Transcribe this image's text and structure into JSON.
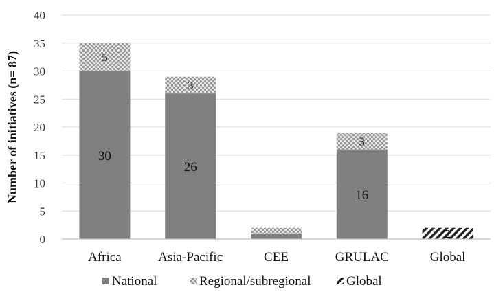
{
  "chart_data": {
    "type": "bar",
    "stacked": true,
    "categories": [
      "Africa",
      "Asia-Pacific",
      "CEE",
      "GRULAC",
      "Global"
    ],
    "series": [
      {
        "name": "National",
        "values": [
          30,
          26,
          1,
          16,
          0
        ],
        "color": "#808080",
        "pattern": "solid"
      },
      {
        "name": "Regional/subregional",
        "values": [
          5,
          3,
          1,
          3,
          0
        ],
        "color": "#a0a0a0",
        "pattern": "checker"
      },
      {
        "name": "Global",
        "values": [
          0,
          0,
          0,
          0,
          2
        ],
        "color": "#222222",
        "pattern": "diagonal"
      }
    ],
    "data_labels": [
      {
        "category": "Africa",
        "series": "National",
        "text": "30"
      },
      {
        "category": "Africa",
        "series": "Regional/subregional",
        "text": "5"
      },
      {
        "category": "Asia-Pacific",
        "series": "National",
        "text": "26"
      },
      {
        "category": "Asia-Pacific",
        "series": "Regional/subregional",
        "text": "3"
      },
      {
        "category": "GRULAC",
        "series": "National",
        "text": "16"
      },
      {
        "category": "GRULAC",
        "series": "Regional/subregional",
        "text": "3"
      },
      {
        "category": "Global",
        "series": "Global",
        "text": "2"
      }
    ],
    "yticks": [
      "0",
      "5",
      "10",
      "15",
      "20",
      "25",
      "30",
      "35",
      "40"
    ],
    "ylim": [
      0,
      40
    ],
    "ylabel": "Number of initiatives  (n= 87)",
    "xlabel": "",
    "title": "",
    "grid": true,
    "legend_position": "bottom"
  }
}
